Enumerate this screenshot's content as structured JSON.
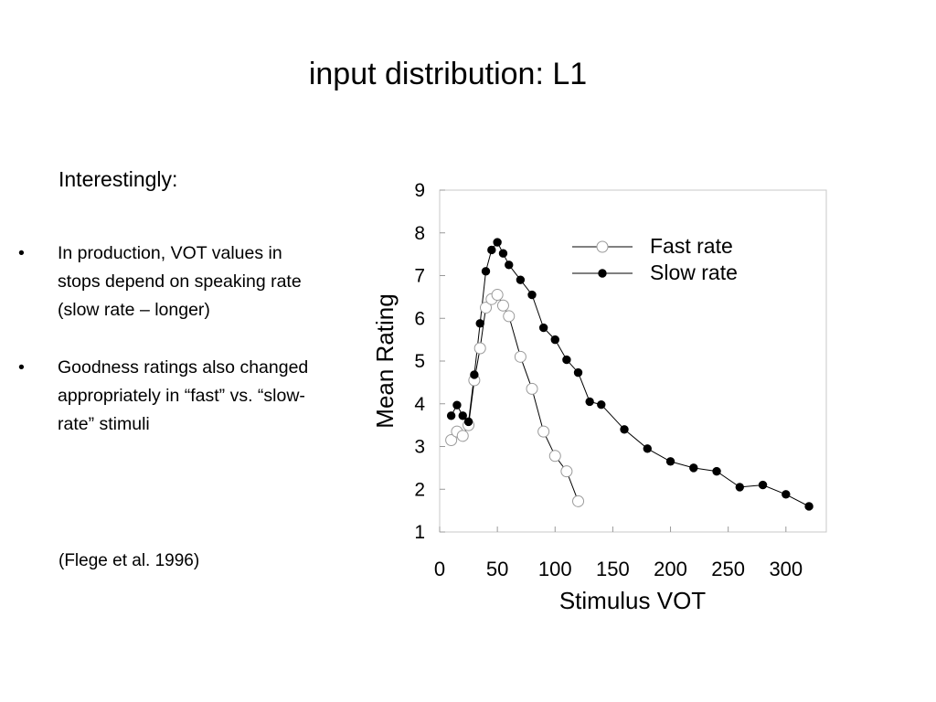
{
  "slide": {
    "title": "input distribution: L1",
    "intro": "Interestingly:",
    "bullets": [
      "In production, VOT values in stops depend on speaking rate (slow rate – longer)",
      "Goodness ratings also changed appropriately in “fast” vs. “slow-rate” stimuli"
    ],
    "bullet_marker": "•",
    "citation": "(Flege et al. 1996)"
  },
  "chart_data": {
    "type": "line",
    "xlabel": "Stimulus VOT",
    "ylabel": "Mean Rating",
    "xlim": [
      0,
      335
    ],
    "ylim": [
      1,
      9
    ],
    "xticks": [
      0,
      50,
      100,
      150,
      200,
      250,
      300
    ],
    "yticks": [
      1,
      2,
      3,
      4,
      5,
      6,
      7,
      8,
      9
    ],
    "grid": false,
    "legend_position": "top-right",
    "series": [
      {
        "name": "Fast rate",
        "marker": "open-circle",
        "x": [
          10,
          15,
          20,
          25,
          30,
          35,
          40,
          45,
          50,
          55,
          60,
          70,
          80,
          90,
          100,
          110,
          120
        ],
        "y": [
          3.15,
          3.35,
          3.25,
          3.5,
          4.55,
          5.3,
          6.25,
          6.45,
          6.55,
          6.3,
          6.05,
          5.1,
          4.35,
          3.35,
          2.78,
          2.42,
          1.72
        ]
      },
      {
        "name": "Slow rate",
        "marker": "filled-circle",
        "x": [
          10,
          15,
          20,
          25,
          30,
          35,
          40,
          45,
          50,
          55,
          60,
          70,
          80,
          90,
          100,
          110,
          120,
          130,
          140,
          160,
          180,
          200,
          220,
          240,
          260,
          280,
          300,
          320
        ],
        "y": [
          3.72,
          3.97,
          3.72,
          3.58,
          4.68,
          5.88,
          7.1,
          7.6,
          7.78,
          7.52,
          7.25,
          6.9,
          6.55,
          5.78,
          5.5,
          5.03,
          4.73,
          4.05,
          3.98,
          3.4,
          2.95,
          2.65,
          2.5,
          2.42,
          2.05,
          2.1,
          1.88,
          1.6
        ]
      }
    ]
  }
}
